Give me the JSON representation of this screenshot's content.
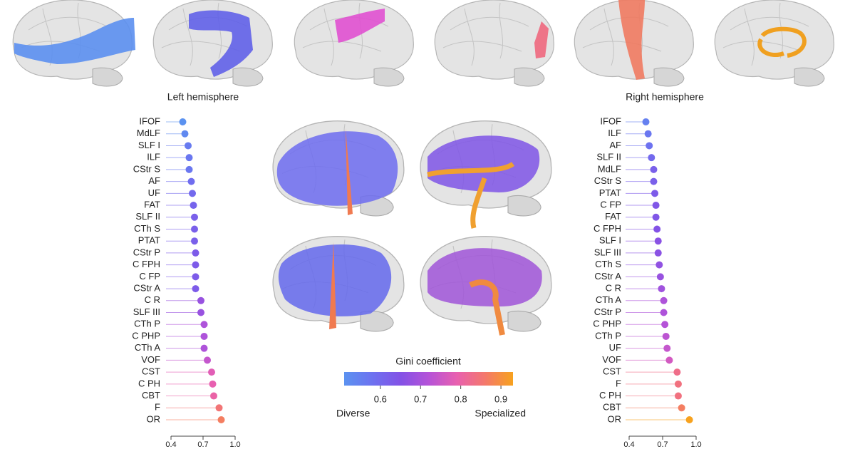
{
  "chart_data": [
    {
      "type": "lollipop",
      "title": "Left hemisphere",
      "categories": [
        "IFOF",
        "MdLF",
        "SLF I",
        "ILF",
        "CStr S",
        "AF",
        "UF",
        "FAT",
        "SLF II",
        "CTh S",
        "PTAT",
        "CStr P",
        "C FPH",
        "C FP",
        "CStr A",
        "C R",
        "SLF III",
        "CTh P",
        "C PHP",
        "CTh A",
        "VOF",
        "CST",
        "C PH",
        "CBT",
        "F",
        "OR"
      ],
      "values": [
        0.51,
        0.53,
        0.56,
        0.57,
        0.57,
        0.59,
        0.6,
        0.61,
        0.62,
        0.62,
        0.62,
        0.63,
        0.63,
        0.63,
        0.63,
        0.68,
        0.68,
        0.71,
        0.71,
        0.71,
        0.74,
        0.78,
        0.79,
        0.8,
        0.85,
        0.87
      ],
      "xlim": [
        0.4,
        1.0
      ],
      "xticks": [
        0.4,
        0.7,
        {
          "value": 1.0,
          "label": "1.0"
        }
      ]
    },
    {
      "type": "lollipop",
      "title": "Right hemisphere",
      "categories": [
        "IFOF",
        "ILF",
        "AF",
        "SLF II",
        "MdLF",
        "CStr S",
        "PTAT",
        "C FP",
        "FAT",
        "C FPH",
        "SLF I",
        "SLF III",
        "CTh S",
        "CStr A",
        "C R",
        "CTh A",
        "CStr P",
        "C PHP",
        "CTh P",
        "UF",
        "VOF",
        "CST",
        "F",
        "C PH",
        "CBT",
        "OR"
      ],
      "values": [
        0.55,
        0.57,
        0.58,
        0.6,
        0.62,
        0.62,
        0.63,
        0.64,
        0.64,
        0.65,
        0.66,
        0.66,
        0.67,
        0.68,
        0.69,
        0.71,
        0.71,
        0.72,
        0.73,
        0.74,
        0.76,
        0.83,
        0.84,
        0.84,
        0.87,
        0.94
      ],
      "xlim": [
        0.4,
        1.0
      ],
      "xticks": [
        0.4,
        0.7,
        {
          "value": 1.0,
          "label": "1.0"
        }
      ]
    },
    {
      "type": "colorbar",
      "title": "Gini coefficient",
      "xlim": [
        0.51,
        0.93
      ],
      "xticks": [
        0.6,
        0.7,
        0.8,
        0.9
      ],
      "colormap": [
        "#5b92f0",
        "#6d72f0",
        "#8352e6",
        "#b553d8",
        "#e860b0",
        "#f4786c",
        "#f7a21e"
      ],
      "low_label": "Diverse",
      "high_label": "Specialized"
    }
  ]
}
